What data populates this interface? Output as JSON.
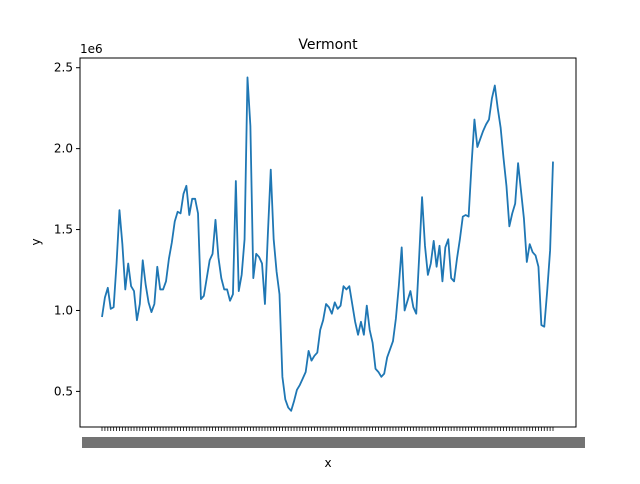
{
  "chart_data": {
    "type": "line",
    "title": "Vermont",
    "xlabel": "x",
    "ylabel": "y",
    "y_offset_label": "1e6",
    "ylim": [
      280000,
      2560000
    ],
    "y_ticks": [
      500000,
      1000000,
      1500000,
      2000000,
      2500000
    ],
    "y_tick_labels": [
      "0.5",
      "1.0",
      "1.5",
      "2.0",
      "2.5"
    ],
    "x_tick_labels_note": "dense overlapping category labels, unreadable",
    "grid": false,
    "legend": "none",
    "color": "#1f77b4",
    "series": [
      {
        "values": [
          960000,
          1080000,
          1140000,
          1010000,
          1020000,
          1290000,
          1620000,
          1410000,
          1130000,
          1290000,
          1150000,
          1120000,
          940000,
          1040000,
          1310000,
          1160000,
          1050000,
          990000,
          1040000,
          1270000,
          1130000,
          1130000,
          1180000,
          1320000,
          1420000,
          1550000,
          1610000,
          1600000,
          1720000,
          1770000,
          1590000,
          1690000,
          1690000,
          1600000,
          1070000,
          1090000,
          1200000,
          1310000,
          1350000,
          1560000,
          1330000,
          1200000,
          1130000,
          1130000,
          1060000,
          1100000,
          1800000,
          1120000,
          1220000,
          1440000,
          2440000,
          2140000,
          1200000,
          1350000,
          1330000,
          1290000,
          1040000,
          1470000,
          1870000,
          1440000,
          1240000,
          1100000,
          590000,
          450000,
          400000,
          380000,
          440000,
          510000,
          540000,
          580000,
          620000,
          750000,
          690000,
          720000,
          740000,
          880000,
          940000,
          1040000,
          1020000,
          980000,
          1050000,
          1010000,
          1030000,
          1150000,
          1130000,
          1150000,
          1040000,
          930000,
          850000,
          930000,
          850000,
          1030000,
          880000,
          800000,
          640000,
          620000,
          590000,
          610000,
          710000,
          760000,
          810000,
          950000,
          1150000,
          1390000,
          1000000,
          1060000,
          1120000,
          1020000,
          980000,
          1330000,
          1700000,
          1400000,
          1220000,
          1290000,
          1430000,
          1270000,
          1400000,
          1180000,
          1390000,
          1440000,
          1200000,
          1180000,
          1320000,
          1440000,
          1580000,
          1590000,
          1580000,
          1900000,
          2180000,
          2010000,
          2060000,
          2110000,
          2150000,
          2180000,
          2310000,
          2390000,
          2250000,
          2130000,
          1940000,
          1770000,
          1520000,
          1600000,
          1660000,
          1910000,
          1740000,
          1570000,
          1300000,
          1410000,
          1360000,
          1340000,
          1270000,
          910000,
          900000,
          1120000,
          1370000,
          1920000
        ]
      }
    ]
  }
}
